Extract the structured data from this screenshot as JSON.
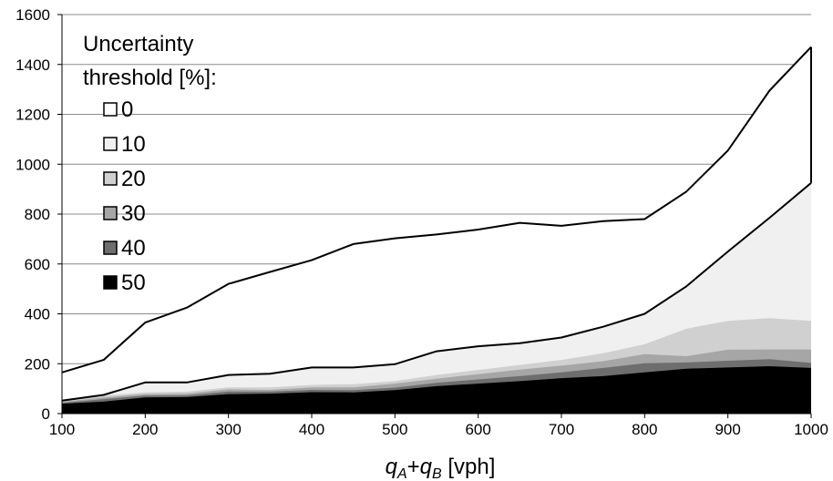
{
  "chart_data": {
    "type": "area",
    "stacked": false,
    "xlabel": {
      "var1": "q",
      "sub1": "A",
      "plus": "+",
      "var2": "q",
      "sub2": "B",
      "unit": " [vph]"
    },
    "ylabel": "",
    "xlim": [
      100,
      1000
    ],
    "ylim": [
      0,
      1600
    ],
    "x_ticks": [
      100,
      200,
      300,
      400,
      500,
      600,
      700,
      800,
      900,
      1000
    ],
    "y_ticks": [
      0,
      200,
      400,
      600,
      800,
      1000,
      1200,
      1400,
      1600
    ],
    "grid": "horizontal",
    "legend": {
      "title_line1": "Uncertainty",
      "title_line2": "threshold [%]:",
      "placement": "top-left"
    },
    "x": [
      100,
      150,
      200,
      250,
      300,
      350,
      400,
      450,
      500,
      550,
      600,
      650,
      700,
      750,
      800,
      850,
      900,
      950,
      1000
    ],
    "series": [
      {
        "name": "0",
        "color": "#ffffff",
        "values": [
          165,
          215,
          365,
          425,
          520,
          568,
          615,
          680,
          703,
          718,
          738,
          765,
          753,
          772,
          780,
          890,
          1055,
          1295,
          1470
        ]
      },
      {
        "name": "10",
        "color": "#f0f0f0",
        "values": [
          52,
          75,
          125,
          125,
          155,
          160,
          185,
          185,
          198,
          250,
          270,
          282,
          305,
          348,
          400,
          510,
          650,
          785,
          925
        ]
      },
      {
        "name": "20",
        "color": "#d0d0d0",
        "values": [
          50,
          72,
          85,
          88,
          105,
          105,
          115,
          118,
          130,
          155,
          175,
          195,
          215,
          242,
          278,
          340,
          372,
          383,
          372
        ]
      },
      {
        "name": "30",
        "color": "#a6a6a6",
        "values": [
          47,
          65,
          78,
          80,
          97,
          95,
          105,
          105,
          120,
          140,
          158,
          176,
          192,
          210,
          238,
          230,
          256,
          257,
          257
        ]
      },
      {
        "name": "40",
        "color": "#6e6e6e",
        "values": [
          43,
          58,
          72,
          73,
          88,
          88,
          95,
          94,
          104,
          123,
          137,
          150,
          165,
          183,
          202,
          205,
          212,
          218,
          203
        ]
      },
      {
        "name": "50",
        "color": "#000000",
        "values": [
          40,
          48,
          65,
          66,
          78,
          80,
          86,
          85,
          94,
          110,
          120,
          130,
          142,
          150,
          165,
          180,
          185,
          190,
          183
        ]
      }
    ]
  }
}
